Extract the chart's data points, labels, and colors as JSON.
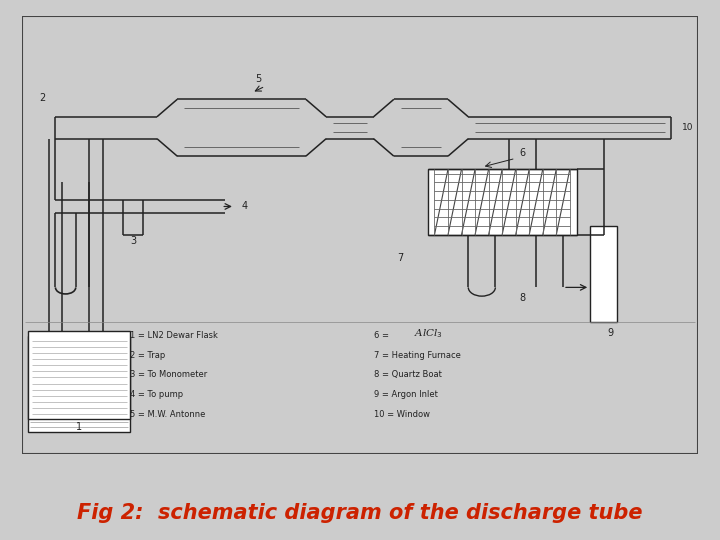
{
  "title": "Fig 2:  schematic diagram of the discharge tube",
  "title_color": "#cc2200",
  "title_fontsize": 15,
  "outer_bg": "#cccccc",
  "diagram_bg": "#f0f0f0",
  "line_color": "#222222",
  "legend_items_left": [
    "1 = LN2 Dewar Flask",
    "2 = Trap",
    "3 = To Monometer",
    "4 = To pump",
    "5 = M.W. Antonne"
  ],
  "legend_items_right": [
    "7 = Heating Furnace",
    "8 = Quartz Boat",
    "9 = Argon Inlet",
    "10 = Window"
  ]
}
